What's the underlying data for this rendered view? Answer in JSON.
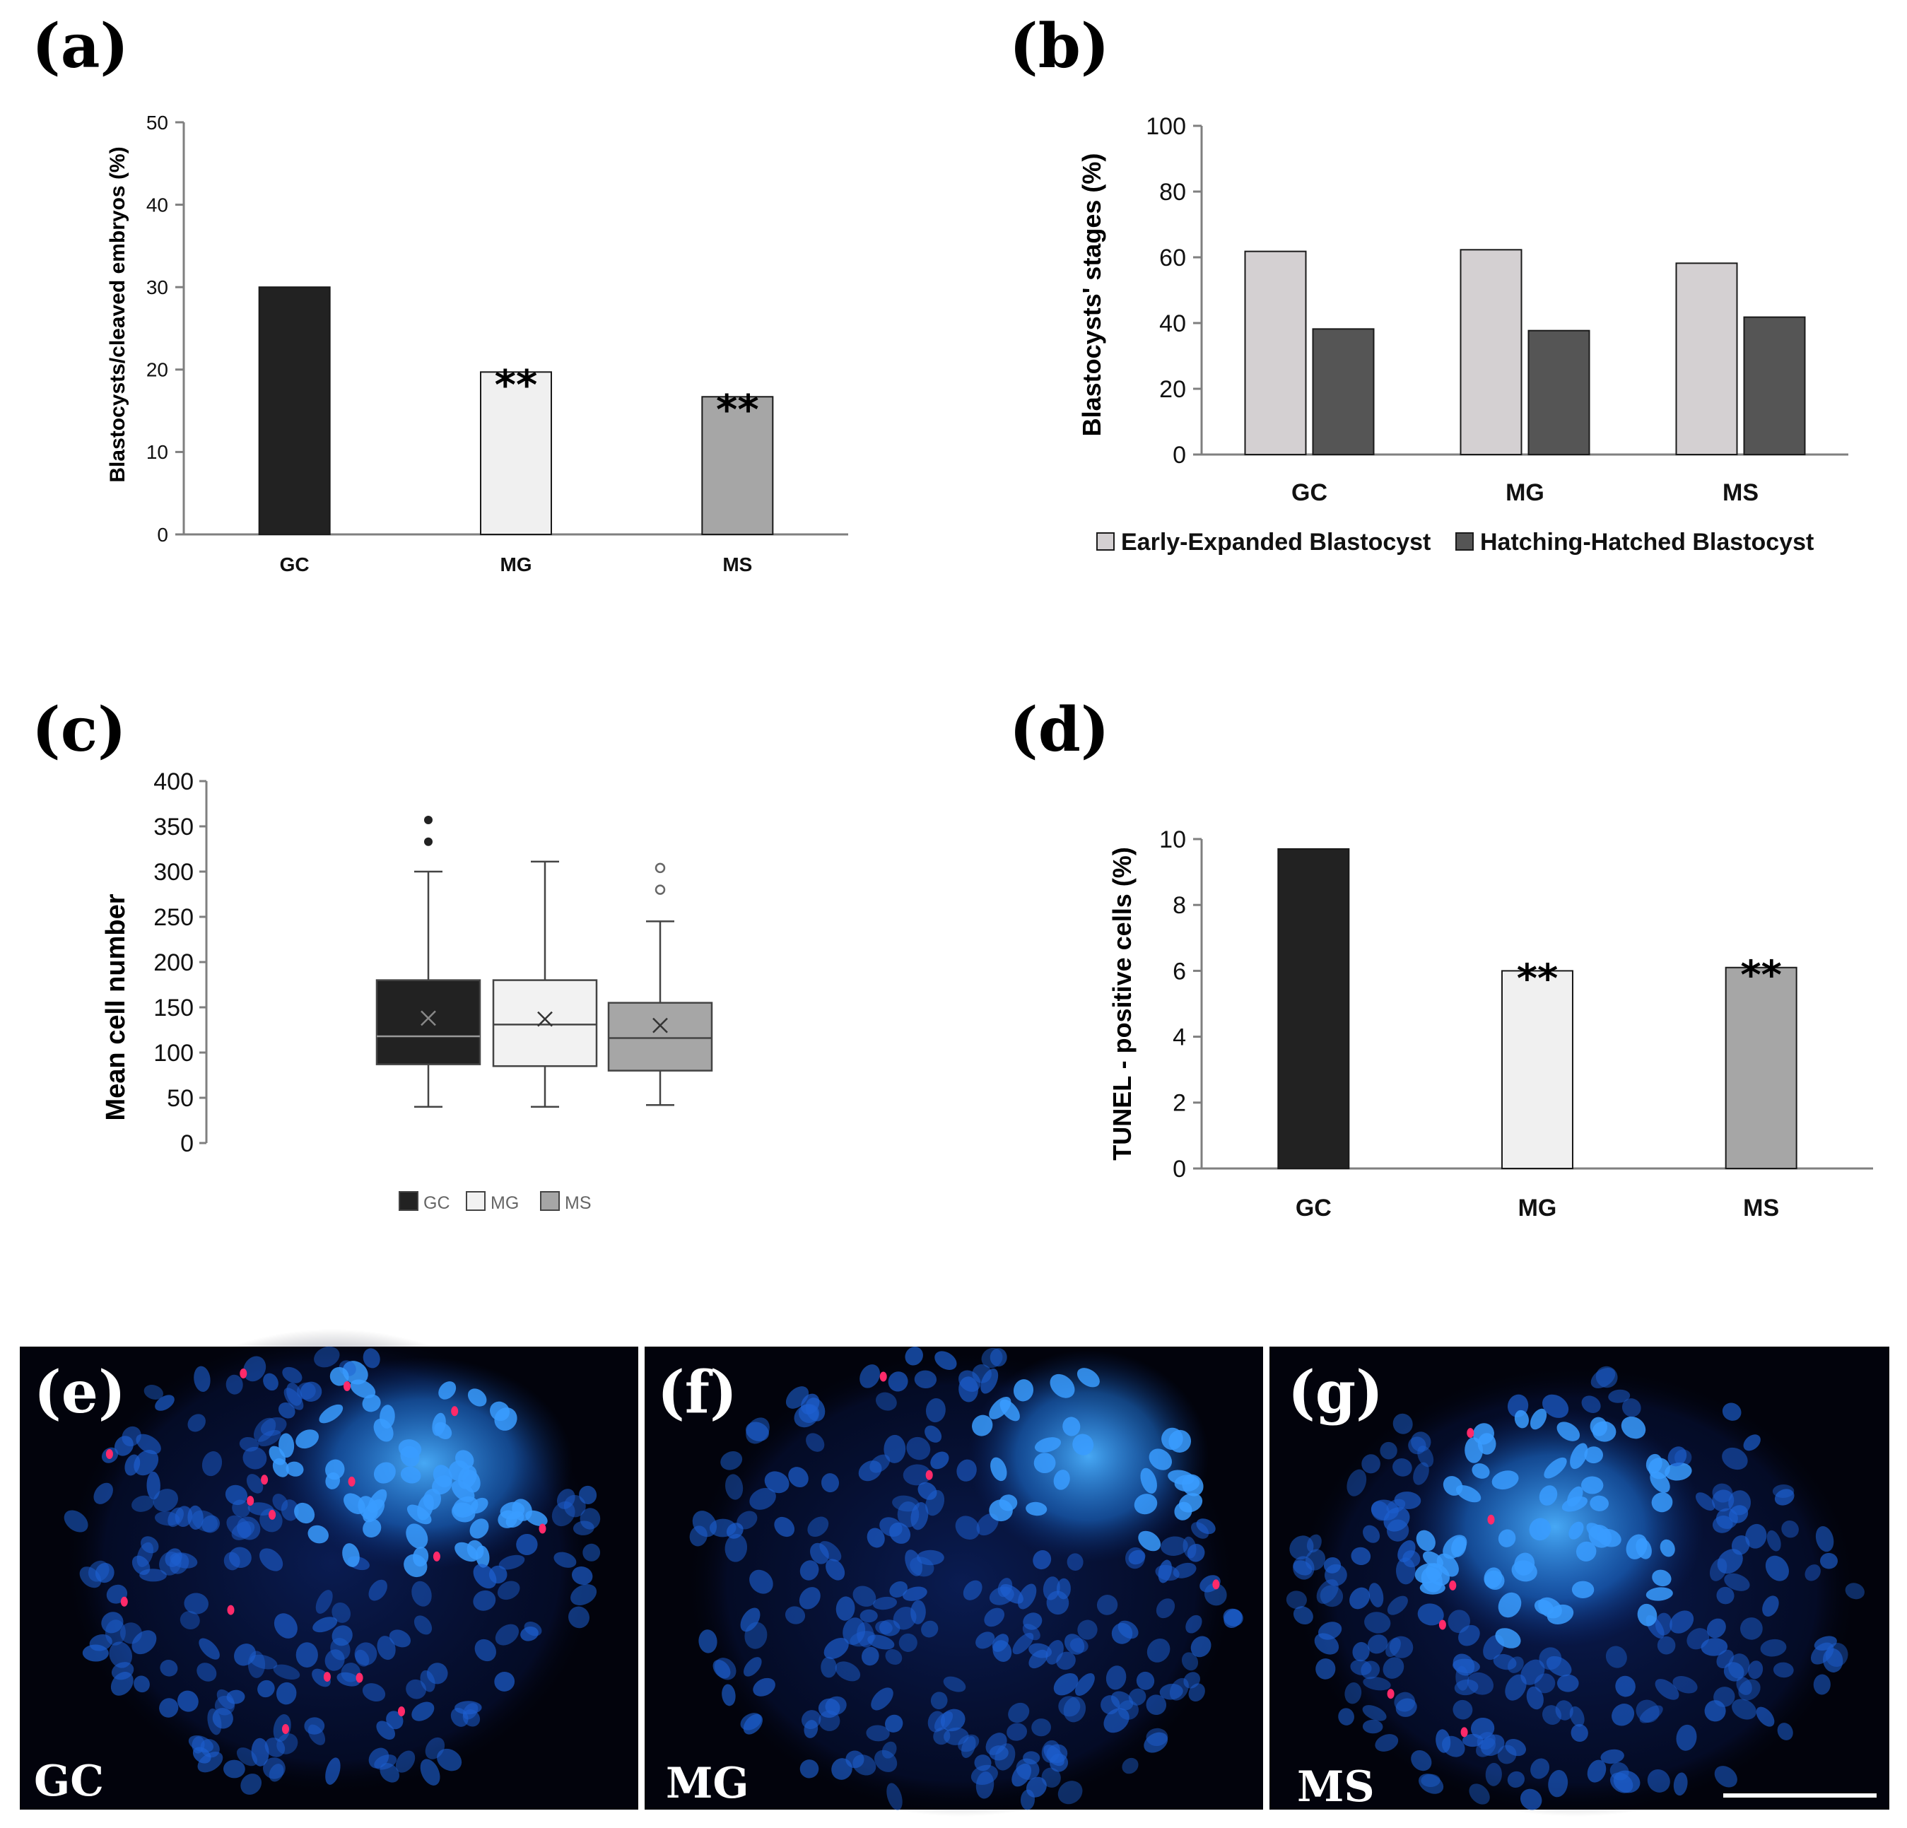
{
  "chart_data": [
    {
      "id": "a",
      "panel_label": "(a)",
      "type": "bar",
      "categories": [
        "GC",
        "MG",
        "MS"
      ],
      "values": [
        30,
        19.7,
        16.7
      ],
      "colors": [
        "#222222",
        "#f0f0f0",
        "#a6a6a6"
      ],
      "annotations": [
        "",
        "**",
        "**"
      ],
      "ylabel": "Blastocysts/cleaved embryos (%)",
      "xlabel": "",
      "ylim": [
        0,
        50
      ],
      "yticks": [
        0,
        10,
        20,
        30,
        40,
        50
      ]
    },
    {
      "id": "b",
      "panel_label": "(b)",
      "type": "bar",
      "categories": [
        "GC",
        "MG",
        "MS"
      ],
      "series": [
        {
          "name": "Early-Expanded Blastocyst",
          "values": [
            61.8,
            62.3,
            58.2
          ],
          "color": "#d4d0d2"
        },
        {
          "name": "Hatching-Hatched Blastocyst",
          "values": [
            38.2,
            37.7,
            41.8
          ],
          "color": "#555555"
        }
      ],
      "ylabel": "Blastocysts' stages  (%)",
      "xlabel": "",
      "ylim": [
        0,
        100
      ],
      "yticks": [
        0,
        20,
        40,
        60,
        80,
        100
      ],
      "legend": "bottom"
    },
    {
      "id": "c",
      "panel_label": "(c)",
      "type": "box",
      "categories": [
        "GC",
        "MG",
        "MS"
      ],
      "boxes": [
        {
          "name": "GC",
          "min": 40,
          "q1": 87,
          "median": 118,
          "q3": 180,
          "max": 300,
          "mean": 138,
          "outliers": [
            333,
            357
          ],
          "color": "#222222"
        },
        {
          "name": "MG",
          "min": 40,
          "q1": 85,
          "median": 131,
          "q3": 180,
          "max": 311,
          "mean": 137,
          "outliers": [],
          "color": "#f2f2f2"
        },
        {
          "name": "MS",
          "min": 42,
          "q1": 80,
          "median": 116,
          "q3": 155,
          "max": 245,
          "mean": 130,
          "outliers": [
            280,
            304
          ],
          "color": "#a6a6a6"
        }
      ],
      "ylabel": "Mean cell number",
      "xlabel": "",
      "ylim": [
        0,
        400
      ],
      "yticks": [
        0,
        50,
        100,
        150,
        200,
        250,
        300,
        350,
        400
      ],
      "legend": "bottom"
    },
    {
      "id": "d",
      "panel_label": "(d)",
      "type": "bar",
      "categories": [
        "GC",
        "MG",
        "MS"
      ],
      "values": [
        9.7,
        6.0,
        6.1
      ],
      "colors": [
        "#222222",
        "#f0f0f0",
        "#a6a6a6"
      ],
      "annotations": [
        "",
        "**",
        "**"
      ],
      "ylabel": "TUNEL - positive cells (%)",
      "xlabel": "",
      "ylim": [
        0,
        10
      ],
      "yticks": [
        0,
        2,
        4,
        6,
        8,
        10
      ]
    }
  ],
  "micrographs": [
    {
      "panel_label": "(e)",
      "group_label": "GC"
    },
    {
      "panel_label": "(f)",
      "group_label": "MG"
    },
    {
      "panel_label": "(g)",
      "group_label": "MS"
    }
  ],
  "colors": {
    "nuclei": "#1e6fd9",
    "apoptotic": "#ff2a6a",
    "micro_bg": "#02030c"
  }
}
